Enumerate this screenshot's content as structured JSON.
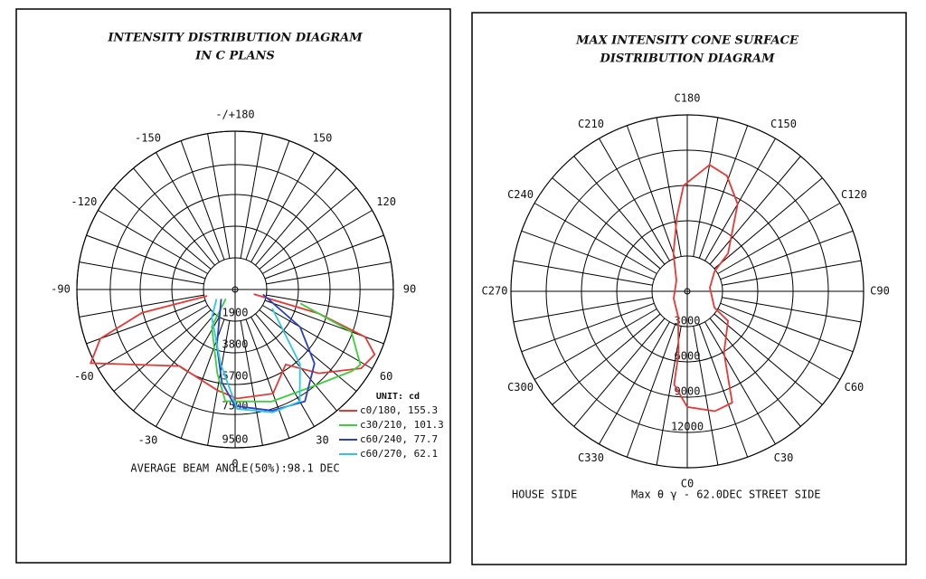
{
  "chart_data": [
    {
      "type": "polar",
      "title": "INTENSITY DISTRIBUTION DIAGRAM",
      "subtitle": "IN C PLANS",
      "angle_ticks": [
        {
          "value": 180,
          "label": "-/+180"
        },
        150,
        120,
        90,
        60,
        30,
        0,
        -30,
        -60,
        -90,
        -120,
        -150
      ],
      "rlim": [
        0,
        9500
      ],
      "rticks": [
        1900,
        3800,
        5700,
        7500,
        9500
      ],
      "legend_title": "UNIT: cd",
      "closed": false,
      "series": [
        {
          "name": "c0/180, 155.3",
          "color": "#e53935",
          "angles": [
            -77,
            -76,
            -70,
            -63,
            -36,
            -10,
            1,
            20,
            34,
            45,
            58,
            65,
            70,
            74,
            76
          ],
          "values": [
            1720,
            5760,
            8610,
            9730,
            5680,
            6140,
            6540,
            6650,
            5430,
            7110,
            8920,
            9240,
            8310,
            5220,
            1150
          ]
        },
        {
          "name": "c30/210, 101.3",
          "color": "#3ccf3c",
          "angles": [
            -45,
            -32,
            -12,
            -5,
            18,
            37,
            55,
            59,
            70,
            78
          ],
          "values": [
            790,
            2640,
            5150,
            6730,
            7070,
            7380,
            8550,
            8770,
            7430,
            4000
          ]
        },
        {
          "name": "c60/240, 77.7",
          "color": "#2a3fc8",
          "angles": [
            -56,
            -18,
            -8,
            0,
            17,
            32,
            47,
            60,
            80
          ],
          "values": [
            1010,
            3540,
            5650,
            6990,
            7600,
            7910,
            6520,
            4510,
            1700
          ]
        },
        {
          "name": "c60/270, 62.1",
          "color": "#2ec8e0",
          "angles": [
            -63,
            -40,
            -11,
            1,
            17,
            30,
            41,
            63
          ],
          "values": [
            1250,
            2180,
            4550,
            7160,
            7710,
            7760,
            5940,
            2500
          ]
        }
      ],
      "annotation": "AVERAGE BEAM ANGLE(50%):98.1 DEC"
    },
    {
      "type": "polar",
      "title": "MAX INTENSITY CONE SURFACE",
      "subtitle": "DISTRIBUTION DIAGRAM",
      "angle_ticks": [
        {
          "value": 0,
          "label": "C0"
        },
        {
          "value": 30,
          "label": "C30"
        },
        {
          "value": 60,
          "label": "C60"
        },
        {
          "value": 90,
          "label": "C90"
        },
        {
          "value": 120,
          "label": "C120"
        },
        {
          "value": 150,
          "label": "C150"
        },
        {
          "value": 180,
          "label": "C180"
        },
        {
          "value": 210,
          "label": "C210"
        },
        {
          "value": 240,
          "label": "C240"
        },
        {
          "value": 270,
          "label": "C270"
        },
        {
          "value": 300,
          "label": "C300"
        },
        {
          "value": 330,
          "label": "C330"
        }
      ],
      "rlim": [
        0,
        15000
      ],
      "rticks": [
        3000,
        6000,
        9000,
        12000
      ],
      "closed": true,
      "series": [
        {
          "color": "#e53935",
          "angles": [
            0,
            13,
            22,
            25,
            31,
            54,
            59,
            99,
            126,
            133,
            150,
            161,
            170,
            182,
            188,
            200,
            225,
            298,
            340,
            352,
            352
          ],
          "values": [
            9840,
            10460,
            10210,
            8290,
            6070,
            4290,
            2690,
            1950,
            2860,
            4740,
            8570,
            10380,
            10920,
            9000,
            6370,
            3430,
            1310,
            1310,
            2280,
            5280,
            8000
          ]
        }
      ],
      "annotations": [
        "HOUSE SIDE",
        "Max θ γ - 62.0DEC STREET SIDE"
      ]
    }
  ]
}
